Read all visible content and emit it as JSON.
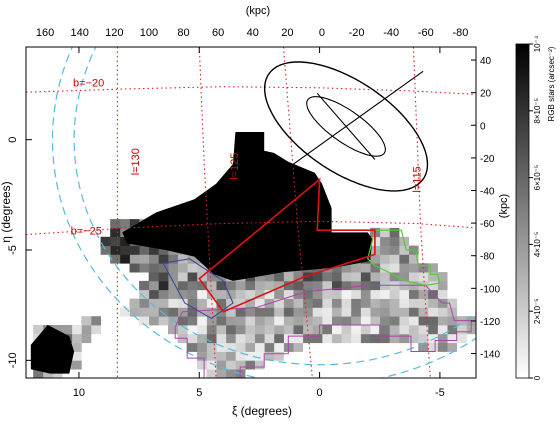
{
  "chart_data": {
    "type": "heatmap",
    "xlabel": "ξ (degrees)",
    "ylabel": "η (degrees)",
    "top_axis_label": "(kpc)",
    "right_axis_label": "(kpc)",
    "colorbar_label": "RGB stars (arcsec⁻²)",
    "xlim": [
      12.2,
      -6.5
    ],
    "ylim": [
      -10.8,
      4.2
    ],
    "top_kpc_range": [
      171,
      -89
    ],
    "right_kpc_range": [
      -155,
      48
    ],
    "x_ticks": [
      10,
      5,
      0,
      -5
    ],
    "x_tick_labels": [
      "10",
      "5",
      "0",
      "-5"
    ],
    "y_ticks": [
      0,
      -5,
      -10
    ],
    "y_tick_labels": [
      "0",
      "-5",
      "-10"
    ],
    "top_ticks": [
      160,
      140,
      120,
      100,
      80,
      60,
      40,
      20,
      0,
      -20,
      -40,
      -60,
      -80
    ],
    "top_tick_labels": [
      "160",
      "140",
      "120",
      "100",
      "80",
      "60",
      "40",
      "20",
      "0",
      "-20",
      "-40",
      "-60",
      "-80"
    ],
    "right_ticks": [
      40,
      20,
      0,
      -20,
      -40,
      -60,
      -80,
      -100,
      -120,
      -140
    ],
    "right_tick_labels": [
      "40",
      "20",
      "0",
      "-20",
      "-40",
      "-60",
      "-80",
      "-100",
      "-120",
      "-140"
    ],
    "colorbar": {
      "range": [
        0,
        0.0001
      ],
      "ticks": [
        0,
        2e-05,
        4e-05,
        6e-05,
        8e-05,
        0.0001
      ],
      "tick_labels": [
        "0",
        "2×10⁻⁵",
        "4×10⁻⁵",
        "6×10⁻⁵",
        "8×10⁻⁵",
        "10⁻⁴"
      ]
    },
    "grid_labels": [
      {
        "text": "b=−20",
        "x": 9.6,
        "y": 2.4
      },
      {
        "text": "b=−25",
        "x": 9.7,
        "y": -4.3
      },
      {
        "text": "l=130",
        "x": 7.5,
        "y": -1.0
      },
      {
        "text": "l=125",
        "x": 3.4,
        "y": -1.2
      },
      {
        "text": "l=115",
        "x": -4.2,
        "y": -1.8
      }
    ],
    "lat_lines": [
      [
        [
          12.2,
          2.15
        ],
        [
          8,
          2.3
        ],
        [
          4,
          2.4
        ],
        [
          0,
          2.35
        ],
        [
          -4,
          2.2
        ],
        [
          -6.5,
          2.05
        ]
      ],
      [
        [
          12.2,
          -4.3
        ],
        [
          8,
          -4.0
        ],
        [
          4,
          -3.8
        ],
        [
          0,
          -3.7
        ],
        [
          -4,
          -3.8
        ],
        [
          -6.5,
          -4.0
        ]
      ]
    ],
    "lon_lines": [
      [
        [
          8.4,
          4.2
        ],
        [
          8.4,
          -10.8
        ]
      ],
      [
        [
          5.0,
          4.2
        ],
        [
          4.8,
          -1.0
        ],
        [
          4.3,
          -10.8
        ]
      ],
      [
        [
          1.5,
          4.2
        ],
        [
          0.9,
          -4.0
        ],
        [
          0.3,
          -10.8
        ]
      ],
      [
        [
          -3.9,
          4.2
        ],
        [
          -4.2,
          -4.0
        ],
        [
          -4.6,
          -10.8
        ]
      ]
    ],
    "circles": [
      {
        "cx": 0,
        "cy": 0,
        "r": 10.2
      },
      {
        "cx": 0,
        "cy": 0,
        "r": 11.1
      }
    ],
    "m31": {
      "outer_ellipse": {
        "cx": -1.1,
        "cy": 0.6,
        "rx": 4.0,
        "ry": 2.0,
        "angle": 38
      },
      "inner_ellipse": {
        "cx": -1.1,
        "cy": 0.6,
        "rx": 2.0,
        "ry": 0.7,
        "angle": 38
      },
      "major_axis": [
        [
          -4.3,
          3.1
        ],
        [
          2.1,
          -1.9
        ]
      ],
      "minor_axis": [
        [
          -2.3,
          -0.9
        ],
        [
          0.1,
          2.1
        ]
      ]
    },
    "red_region": [
      [
        0,
        -1.8
      ],
      [
        5.0,
        -6.3
      ],
      [
        4.0,
        -7.8
      ],
      [
        0.6,
        -6.2
      ],
      [
        -2.3,
        -5.2
      ],
      [
        -2.3,
        -4.1
      ],
      [
        0.1,
        -4.1
      ]
    ],
    "green_region": [
      [
        -2.3,
        -4.1
      ],
      [
        -3.4,
        -4.1
      ],
      [
        -3.6,
        -5.0
      ],
      [
        -4.0,
        -5.0
      ],
      [
        -4.1,
        -5.7
      ],
      [
        -4.6,
        -5.7
      ],
      [
        -4.6,
        -6.1
      ],
      [
        -4.9,
        -6.1
      ],
      [
        -5.0,
        -6.5
      ],
      [
        -4.4,
        -6.6
      ],
      [
        -3.6,
        -6.4
      ],
      [
        -2.3,
        -5.7
      ],
      [
        -2.0,
        -5.4
      ]
    ],
    "blue_region": [
      [
        6.5,
        -5.6
      ],
      [
        5.4,
        -5.4
      ],
      [
        4.0,
        -6.4
      ],
      [
        3.6,
        -7.4
      ],
      [
        4.5,
        -8.1
      ],
      [
        5.6,
        -7.4
      ]
    ],
    "magenta_region": [
      [
        6.0,
        -8.5
      ],
      [
        5.7,
        -7.8
      ],
      [
        2.6,
        -7.6
      ],
      [
        0.6,
        -6.9
      ],
      [
        -2.1,
        -6.6
      ],
      [
        -4.4,
        -6.6
      ],
      [
        -5.1,
        -7.4
      ],
      [
        -5.4,
        -7.4
      ],
      [
        -5.6,
        -8.2
      ],
      [
        -6.3,
        -8.2
      ],
      [
        -6.3,
        -8.7
      ],
      [
        -5.7,
        -8.7
      ],
      [
        -5.7,
        -9.1
      ],
      [
        -4.8,
        -9.1
      ],
      [
        -4.8,
        -9.6
      ],
      [
        -3.8,
        -9.6
      ],
      [
        -3.8,
        -8.9
      ],
      [
        -2.5,
        -8.9
      ],
      [
        -2.5,
        -8.4
      ],
      [
        0.0,
        -8.4
      ],
      [
        0.0,
        -8.9
      ],
      [
        1.3,
        -8.9
      ],
      [
        1.3,
        -9.7
      ],
      [
        2.3,
        -9.7
      ],
      [
        2.3,
        -10.3
      ],
      [
        3.3,
        -10.3
      ],
      [
        3.3,
        -10.9
      ],
      [
        4.8,
        -10.9
      ],
      [
        4.8,
        -9.9
      ],
      [
        5.5,
        -9.9
      ],
      [
        5.5,
        -9.0
      ],
      [
        6.0,
        -9.0
      ]
    ],
    "saturated_region": [
      [
        3.5,
        0.35
      ],
      [
        2.3,
        0.35
      ],
      [
        2.3,
        -0.5
      ],
      [
        1.9,
        -0.6
      ],
      [
        1.3,
        -1.0
      ],
      [
        0.2,
        -1.5
      ],
      [
        -0.1,
        -2.0
      ],
      [
        -0.5,
        -3.1
      ],
      [
        -0.5,
        -4.2
      ],
      [
        -2.0,
        -4.2
      ],
      [
        -2.2,
        -4.5
      ],
      [
        -2.1,
        -5.5
      ],
      [
        -0.6,
        -5.8
      ],
      [
        1.5,
        -6.0
      ],
      [
        3.6,
        -6.4
      ],
      [
        4.4,
        -6.1
      ],
      [
        5.2,
        -5.3
      ],
      [
        6.4,
        -5.0
      ],
      [
        8.0,
        -4.7
      ],
      [
        8.2,
        -4.2
      ],
      [
        6.8,
        -3.3
      ],
      [
        5.2,
        -2.7
      ],
      [
        4.3,
        -2.0
      ],
      [
        3.6,
        -1.1
      ]
    ],
    "tail_region": [
      [
        12.0,
        -9.3
      ],
      [
        12.0,
        -10.4
      ],
      [
        11.2,
        -10.6
      ],
      [
        10.4,
        -10.6
      ],
      [
        10.2,
        -9.6
      ],
      [
        10.4,
        -8.9
      ],
      [
        11.3,
        -8.4
      ]
    ],
    "sampled_region": [
      [
        8.5,
        -3.5
      ],
      [
        7.3,
        -3.6
      ],
      [
        5.6,
        -3.8
      ],
      [
        3.2,
        -4.7
      ],
      [
        1.0,
        -5.1
      ],
      [
        -1.0,
        -4.8
      ],
      [
        -2.3,
        -4.1
      ],
      [
        -3.5,
        -4.2
      ],
      [
        -4.2,
        -5.4
      ],
      [
        -5.1,
        -6.1
      ],
      [
        -5.6,
        -7.6
      ],
      [
        -6.4,
        -8.2
      ],
      [
        -6.4,
        -8.7
      ],
      [
        -5.6,
        -9.6
      ],
      [
        -4.4,
        -9.6
      ],
      [
        -3.4,
        -9.0
      ],
      [
        0.1,
        -9.0
      ],
      [
        2.6,
        -10.4
      ],
      [
        3.7,
        -10.8
      ],
      [
        4.8,
        -10.6
      ],
      [
        5.6,
        -9.3
      ],
      [
        6.3,
        -8.6
      ],
      [
        7.4,
        -8.2
      ],
      [
        8.8,
        -7.8
      ],
      [
        10.4,
        -8.3
      ],
      [
        11.8,
        -8.6
      ],
      [
        12.1,
        -9.2
      ],
      [
        12.1,
        -10.7
      ],
      [
        11.2,
        -10.8
      ],
      [
        10.2,
        -10.5
      ],
      [
        9.8,
        -9.4
      ],
      [
        8.9,
        -8.1
      ],
      [
        7.8,
        -7.3
      ],
      [
        7.3,
        -6.2
      ],
      [
        8.0,
        -5.6
      ],
      [
        9.4,
        -5.2
      ]
    ]
  },
  "colors": {
    "lat_lon_grid": "#dd2222",
    "circles": "#55bbdd",
    "red_region": "#dd1111",
    "green_region": "#55cc33",
    "blue_region": "#334499",
    "magenta_region": "#aa44aa"
  }
}
